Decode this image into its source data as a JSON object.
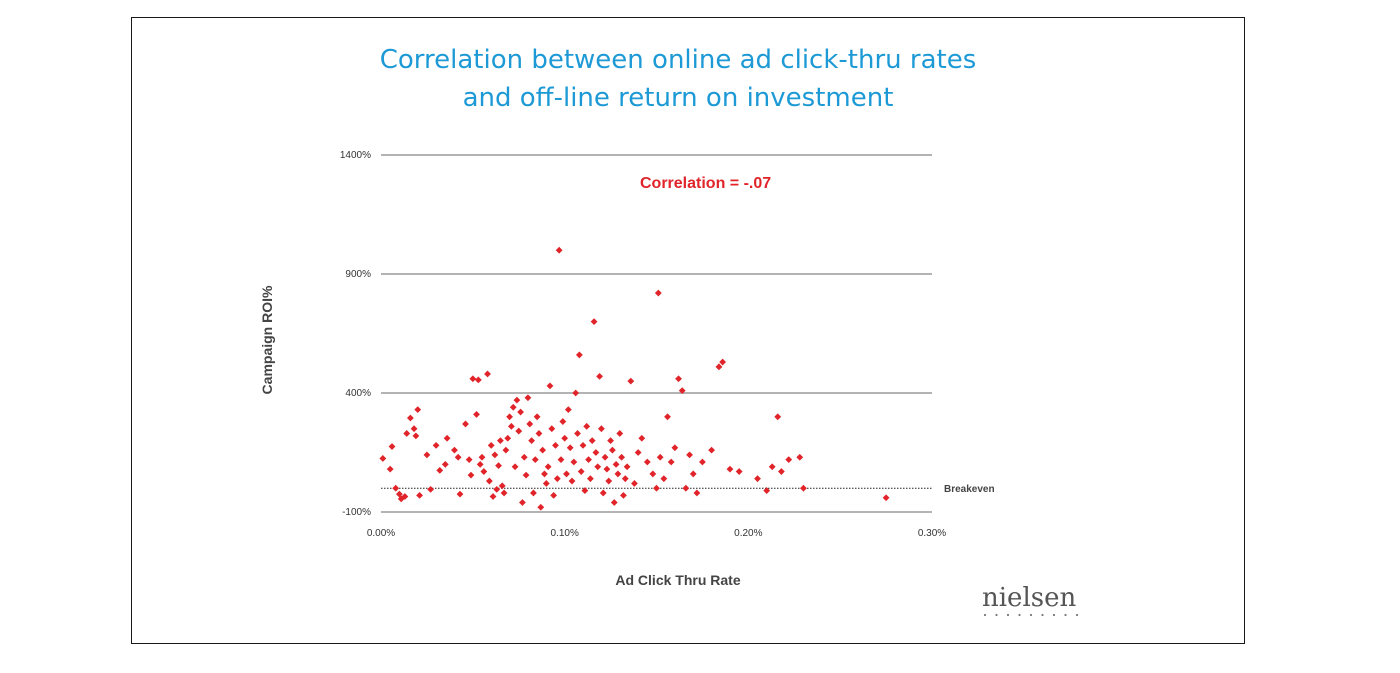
{
  "chart_data": {
    "type": "scatter",
    "title": [
      "Correlation between online ad click-thru rates",
      "and off-line return on investment"
    ],
    "xlabel": "Ad Click Thru Rate",
    "ylabel": "Campaign ROI%",
    "xlim": [
      0,
      0.3
    ],
    "ylim": [
      -100,
      1400
    ],
    "x_ticks": [
      "0.00%",
      "0.10%",
      "0.20%",
      "0.30%"
    ],
    "x_tick_values": [
      0,
      0.1,
      0.2,
      0.3
    ],
    "y_ticks": [
      "1400%",
      "900%",
      "400%",
      "-100%"
    ],
    "y_tick_values": [
      1400,
      900,
      400,
      -100
    ],
    "gridlines": "horizontal",
    "breakeven": {
      "y": 0,
      "label": "Breakeven"
    },
    "annotation": "Correlation = -.07",
    "marker_color": "#e0242a",
    "points": [
      [
        0.001,
        125
      ],
      [
        0.006,
        175
      ],
      [
        0.005,
        80
      ],
      [
        0.008,
        0
      ],
      [
        0.01,
        -25
      ],
      [
        0.011,
        -45
      ],
      [
        0.013,
        -35
      ],
      [
        0.014,
        230
      ],
      [
        0.016,
        295
      ],
      [
        0.018,
        250
      ],
      [
        0.019,
        220
      ],
      [
        0.02,
        330
      ],
      [
        0.021,
        -30
      ],
      [
        0.025,
        140
      ],
      [
        0.027,
        -5
      ],
      [
        0.03,
        180
      ],
      [
        0.032,
        75
      ],
      [
        0.035,
        100
      ],
      [
        0.036,
        210
      ],
      [
        0.04,
        160
      ],
      [
        0.042,
        130
      ],
      [
        0.043,
        -25
      ],
      [
        0.046,
        270
      ],
      [
        0.048,
        120
      ],
      [
        0.049,
        55
      ],
      [
        0.05,
        460
      ],
      [
        0.052,
        310
      ],
      [
        0.053,
        455
      ],
      [
        0.054,
        100
      ],
      [
        0.055,
        130
      ],
      [
        0.056,
        70
      ],
      [
        0.058,
        480
      ],
      [
        0.059,
        30
      ],
      [
        0.06,
        180
      ],
      [
        0.061,
        -35
      ],
      [
        0.062,
        140
      ],
      [
        0.063,
        -5
      ],
      [
        0.064,
        95
      ],
      [
        0.065,
        200
      ],
      [
        0.066,
        10
      ],
      [
        0.067,
        -20
      ],
      [
        0.068,
        160
      ],
      [
        0.069,
        210
      ],
      [
        0.07,
        300
      ],
      [
        0.071,
        260
      ],
      [
        0.072,
        340
      ],
      [
        0.073,
        90
      ],
      [
        0.074,
        370
      ],
      [
        0.075,
        240
      ],
      [
        0.076,
        320
      ],
      [
        0.077,
        -60
      ],
      [
        0.078,
        130
      ],
      [
        0.079,
        55
      ],
      [
        0.08,
        380
      ],
      [
        0.081,
        270
      ],
      [
        0.082,
        200
      ],
      [
        0.083,
        -20
      ],
      [
        0.084,
        120
      ],
      [
        0.085,
        300
      ],
      [
        0.086,
        230
      ],
      [
        0.087,
        -80
      ],
      [
        0.088,
        160
      ],
      [
        0.089,
        60
      ],
      [
        0.09,
        20
      ],
      [
        0.091,
        90
      ],
      [
        0.092,
        430
      ],
      [
        0.093,
        250
      ],
      [
        0.094,
        -30
      ],
      [
        0.095,
        180
      ],
      [
        0.096,
        40
      ],
      [
        0.097,
        1000
      ],
      [
        0.098,
        120
      ],
      [
        0.099,
        280
      ],
      [
        0.1,
        210
      ],
      [
        0.101,
        60
      ],
      [
        0.102,
        330
      ],
      [
        0.103,
        170
      ],
      [
        0.104,
        30
      ],
      [
        0.105,
        110
      ],
      [
        0.106,
        400
      ],
      [
        0.107,
        230
      ],
      [
        0.108,
        560
      ],
      [
        0.109,
        70
      ],
      [
        0.11,
        180
      ],
      [
        0.111,
        -10
      ],
      [
        0.112,
        260
      ],
      [
        0.113,
        120
      ],
      [
        0.114,
        40
      ],
      [
        0.115,
        200
      ],
      [
        0.116,
        700
      ],
      [
        0.117,
        150
      ],
      [
        0.118,
        90
      ],
      [
        0.119,
        470
      ],
      [
        0.12,
        250
      ],
      [
        0.121,
        -20
      ],
      [
        0.122,
        130
      ],
      [
        0.123,
        80
      ],
      [
        0.124,
        30
      ],
      [
        0.125,
        200
      ],
      [
        0.126,
        160
      ],
      [
        0.127,
        -60
      ],
      [
        0.128,
        100
      ],
      [
        0.129,
        60
      ],
      [
        0.13,
        230
      ],
      [
        0.131,
        130
      ],
      [
        0.132,
        -30
      ],
      [
        0.133,
        40
      ],
      [
        0.134,
        90
      ],
      [
        0.136,
        450
      ],
      [
        0.138,
        20
      ],
      [
        0.14,
        150
      ],
      [
        0.142,
        210
      ],
      [
        0.145,
        110
      ],
      [
        0.148,
        60
      ],
      [
        0.15,
        0
      ],
      [
        0.151,
        820
      ],
      [
        0.152,
        130
      ],
      [
        0.154,
        40
      ],
      [
        0.156,
        300
      ],
      [
        0.158,
        110
      ],
      [
        0.16,
        170
      ],
      [
        0.162,
        460
      ],
      [
        0.164,
        410
      ],
      [
        0.166,
        0
      ],
      [
        0.168,
        140
      ],
      [
        0.17,
        60
      ],
      [
        0.172,
        -20
      ],
      [
        0.175,
        110
      ],
      [
        0.18,
        160
      ],
      [
        0.184,
        510
      ],
      [
        0.186,
        530
      ],
      [
        0.19,
        80
      ],
      [
        0.195,
        70
      ],
      [
        0.205,
        40
      ],
      [
        0.21,
        -10
      ],
      [
        0.213,
        90
      ],
      [
        0.216,
        300
      ],
      [
        0.218,
        70
      ],
      [
        0.222,
        120
      ],
      [
        0.228,
        130
      ],
      [
        0.23,
        0
      ],
      [
        0.275,
        -40
      ]
    ]
  },
  "logo": {
    "text": "nielsen"
  }
}
